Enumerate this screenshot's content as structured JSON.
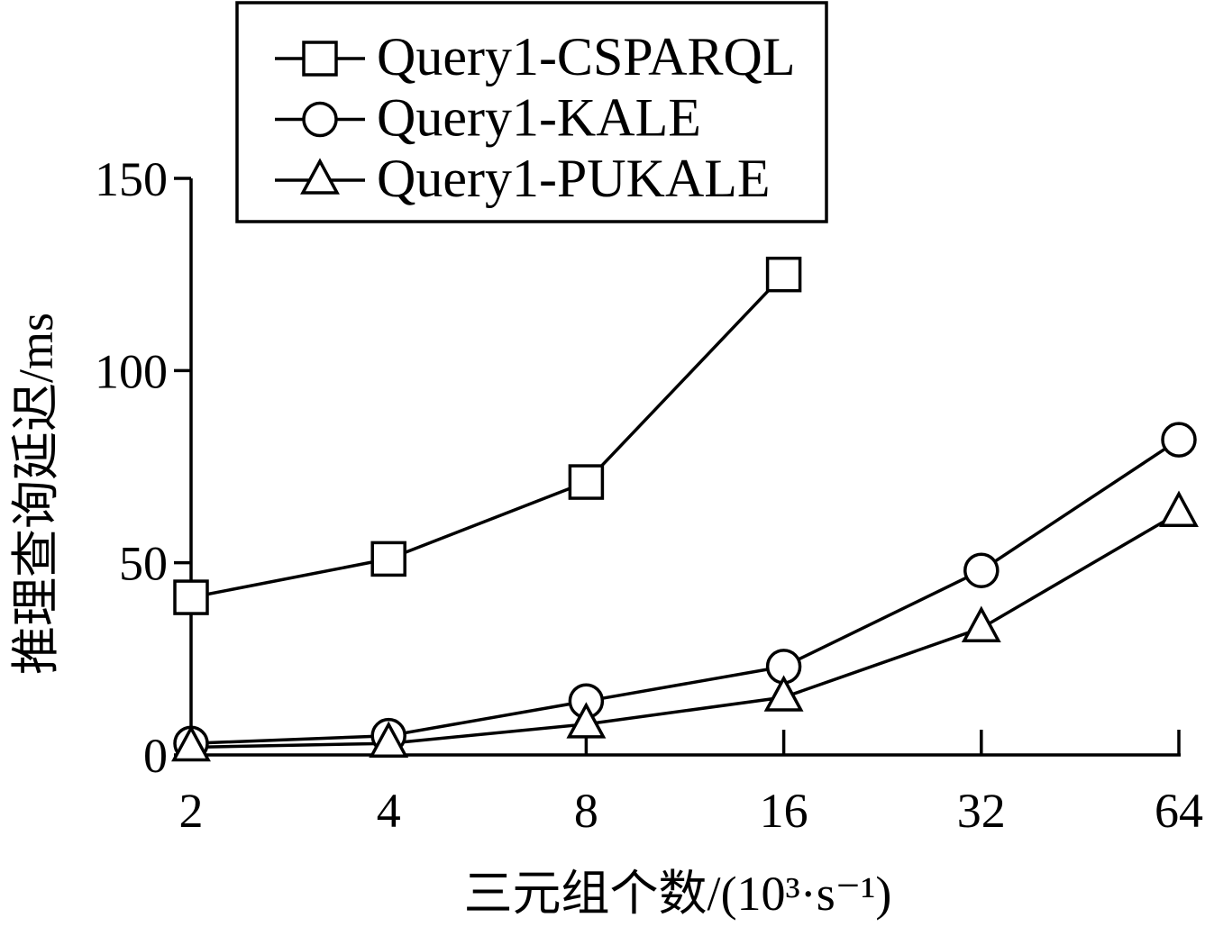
{
  "chart_data": {
    "type": "line",
    "xlabel": "三元组个数/(10³·s⁻¹)",
    "ylabel": "推理查询延迟/ms",
    "categories": [
      "2",
      "4",
      "8",
      "16",
      "32",
      "64"
    ],
    "xscale": "log2",
    "ylim": [
      0,
      150
    ],
    "yticks": [
      0,
      50,
      100,
      150
    ],
    "grid": false,
    "legend": "top-left",
    "series": [
      {
        "name": "Query1-CSPARQL",
        "marker": "square",
        "values": [
          41,
          51,
          71,
          125,
          null,
          null
        ]
      },
      {
        "name": "Query1-KALE",
        "marker": "circle",
        "values": [
          3,
          5,
          14,
          23,
          48,
          82
        ]
      },
      {
        "name": "Query1-PUKALE",
        "marker": "triangle",
        "values": [
          2,
          3,
          8,
          15,
          33,
          63
        ]
      }
    ],
    "colors": {
      "line": "#000000",
      "marker_fill": "#ffffff",
      "background": "#ffffff"
    }
  }
}
